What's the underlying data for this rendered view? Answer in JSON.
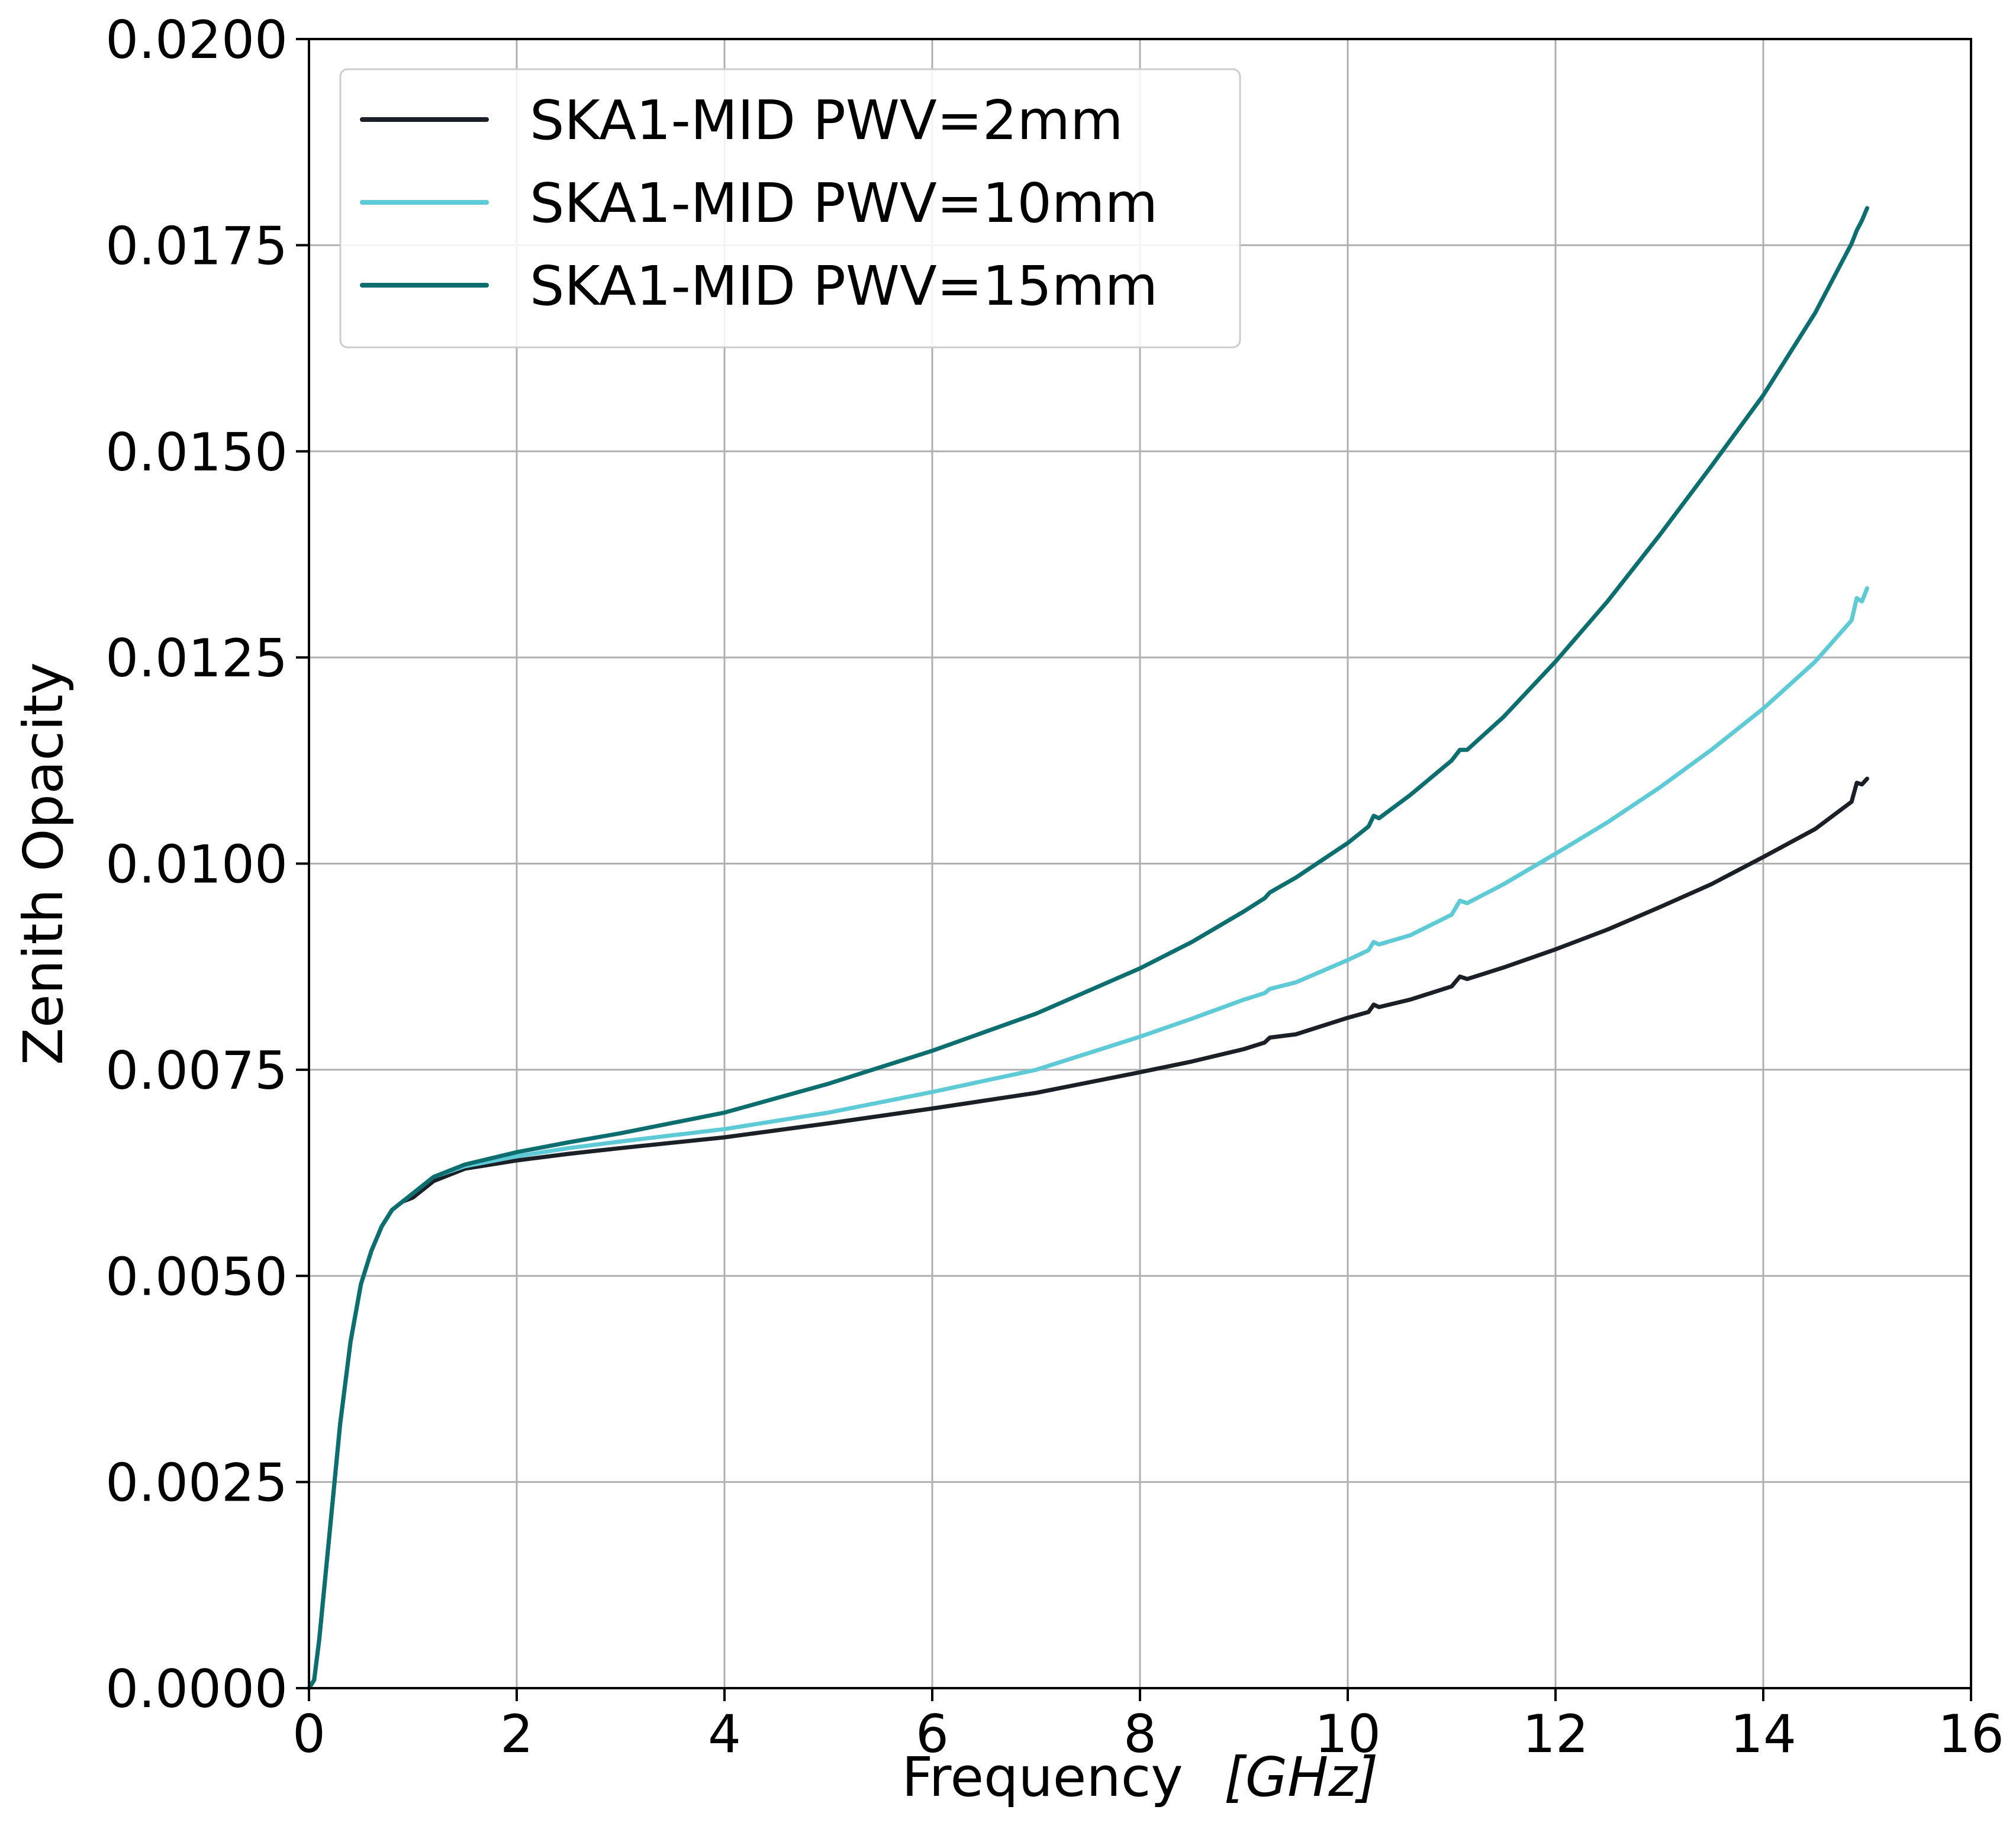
{
  "chart_data": {
    "type": "line",
    "title": "",
    "xlabel": "Frequency",
    "xlabel_unit": "[GHz]",
    "ylabel": "Zenith Opacity",
    "xlim": [
      0,
      16
    ],
    "ylim": [
      0,
      0.02
    ],
    "grid": true,
    "legend_position": "upper-left",
    "x_ticks": [
      0,
      2,
      4,
      6,
      8,
      10,
      12,
      14,
      16
    ],
    "x_tick_labels": [
      "0",
      "2",
      "4",
      "6",
      "8",
      "10",
      "12",
      "14",
      "16"
    ],
    "y_ticks": [
      0,
      0.0025,
      0.005,
      0.0075,
      0.01,
      0.0125,
      0.015,
      0.0175,
      0.02
    ],
    "y_tick_labels": [
      "0.0000",
      "0.0025",
      "0.0050",
      "0.0075",
      "0.0100",
      "0.0125",
      "0.0150",
      "0.0175",
      "0.0200"
    ],
    "series": [
      {
        "name": "SKA1-MID PWV=2mm",
        "color": "#1b1f26",
        "x": [
          0.05,
          0.1,
          0.2,
          0.3,
          0.4,
          0.5,
          0.6,
          0.7,
          0.8,
          0.9,
          1.0,
          1.2,
          1.5,
          2.0,
          2.5,
          3.0,
          4.0,
          5.0,
          6.0,
          7.0,
          8.0,
          8.5,
          9.0,
          9.2,
          9.25,
          9.5,
          10.0,
          10.2,
          10.25,
          10.3,
          10.6,
          11.0,
          11.08,
          11.15,
          11.5,
          12.0,
          12.5,
          13.0,
          13.5,
          14.0,
          14.5,
          14.85,
          14.9,
          14.95,
          15.0
        ],
        "y": [
          0.0001,
          0.0006,
          0.0019,
          0.0032,
          0.0042,
          0.0049,
          0.0053,
          0.0056,
          0.0058,
          0.0059,
          0.00595,
          0.00615,
          0.0063,
          0.0064,
          0.00648,
          0.00655,
          0.00668,
          0.00685,
          0.00703,
          0.00722,
          0.00747,
          0.0076,
          0.00775,
          0.00783,
          0.00789,
          0.00793,
          0.00813,
          0.0082,
          0.00829,
          0.00826,
          0.00835,
          0.00851,
          0.00863,
          0.0086,
          0.00874,
          0.00896,
          0.0092,
          0.00947,
          0.00975,
          0.01008,
          0.01042,
          0.01075,
          0.01098,
          0.01096,
          0.01103
        ]
      },
      {
        "name": "SKA1-MID PWV=10mm",
        "color": "#5ecad6",
        "x": [
          0.05,
          0.1,
          0.2,
          0.3,
          0.4,
          0.5,
          0.6,
          0.7,
          0.8,
          0.9,
          1.0,
          1.2,
          1.5,
          2.0,
          2.5,
          3.0,
          4.0,
          5.0,
          6.0,
          7.0,
          8.0,
          8.5,
          9.0,
          9.2,
          9.25,
          9.5,
          10.0,
          10.2,
          10.25,
          10.3,
          10.6,
          11.0,
          11.08,
          11.15,
          11.5,
          12.0,
          12.5,
          13.0,
          13.5,
          14.0,
          14.5,
          14.85,
          14.9,
          14.95,
          15.0
        ],
        "y": [
          0.0001,
          0.0006,
          0.0019,
          0.0032,
          0.0042,
          0.0049,
          0.0053,
          0.0056,
          0.0058,
          0.0059,
          0.006,
          0.0062,
          0.00633,
          0.00645,
          0.00655,
          0.00663,
          0.00678,
          0.00698,
          0.00723,
          0.0075,
          0.0079,
          0.00812,
          0.00835,
          0.00843,
          0.00848,
          0.00856,
          0.00883,
          0.00895,
          0.00905,
          0.00902,
          0.00913,
          0.00938,
          0.00955,
          0.00952,
          0.00975,
          0.01012,
          0.0105,
          0.01092,
          0.01138,
          0.01188,
          0.01245,
          0.01295,
          0.01322,
          0.01318,
          0.01334
        ]
      },
      {
        "name": "SKA1-MID PWV=15mm",
        "color": "#0d6e70",
        "x": [
          0.05,
          0.1,
          0.2,
          0.3,
          0.4,
          0.5,
          0.6,
          0.7,
          0.8,
          0.9,
          1.0,
          1.2,
          1.5,
          2.0,
          2.5,
          3.0,
          4.0,
          5.0,
          6.0,
          7.0,
          8.0,
          8.5,
          9.0,
          9.2,
          9.25,
          9.5,
          10.0,
          10.2,
          10.25,
          10.3,
          10.6,
          11.0,
          11.08,
          11.15,
          11.5,
          12.0,
          12.5,
          13.0,
          13.5,
          14.0,
          14.5,
          14.85,
          14.9,
          14.95,
          15.0
        ],
        "y": [
          0.0001,
          0.0006,
          0.0019,
          0.0032,
          0.0042,
          0.0049,
          0.0053,
          0.0056,
          0.0058,
          0.0059,
          0.006,
          0.0062,
          0.00635,
          0.0065,
          0.00662,
          0.00673,
          0.00698,
          0.00733,
          0.00773,
          0.00818,
          0.00873,
          0.00905,
          0.00942,
          0.00958,
          0.00965,
          0.00983,
          0.01025,
          0.01045,
          0.01058,
          0.01055,
          0.01083,
          0.01125,
          0.01138,
          0.01138,
          0.01178,
          0.01245,
          0.01318,
          0.01398,
          0.01482,
          0.01568,
          0.01668,
          0.01752,
          0.01768,
          0.0178,
          0.01795
        ]
      }
    ]
  }
}
